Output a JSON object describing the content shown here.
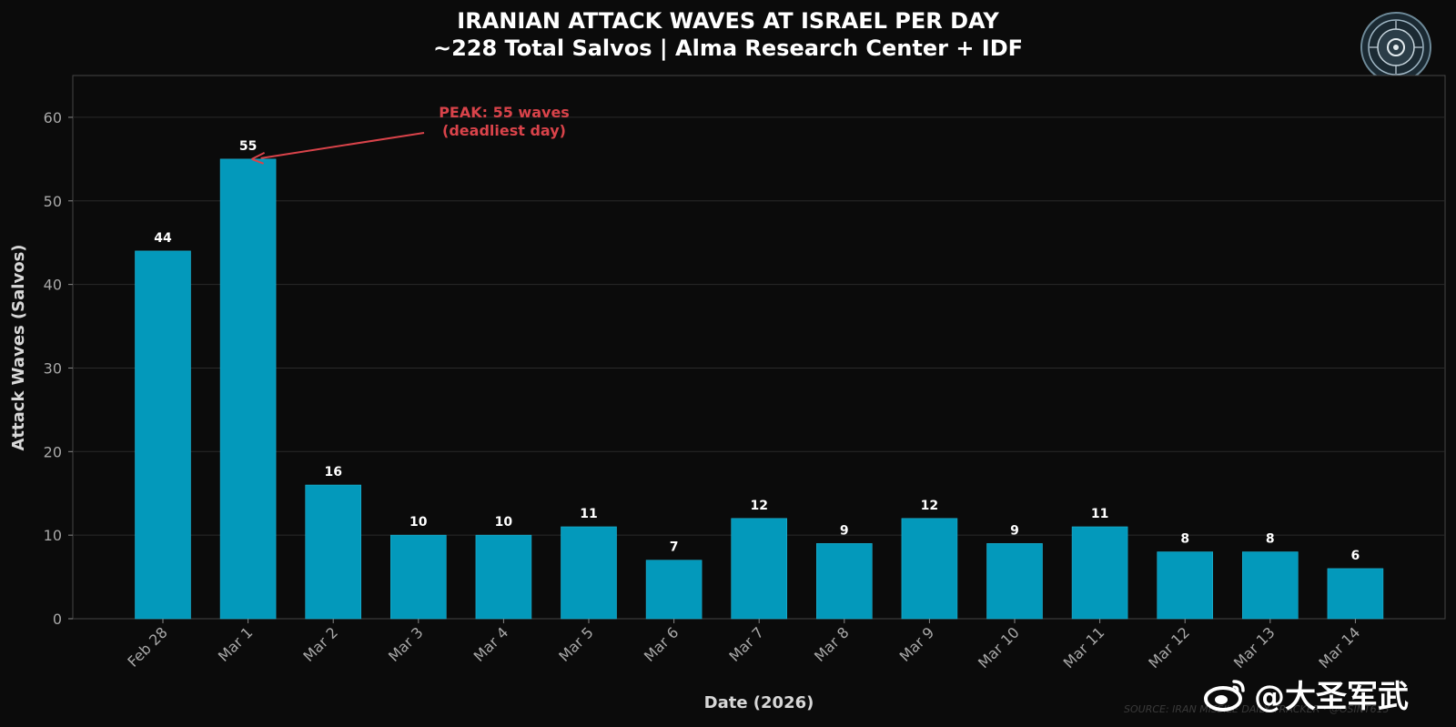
{
  "header": {
    "title_line1": "IRANIAN ATTACK WAVES AT ISRAEL PER DAY",
    "title_line2": "~228 Total Salvos | Alma Research Center + IDF"
  },
  "chart_data": {
    "type": "bar",
    "title": "IRANIAN ATTACK WAVES AT ISRAEL PER DAY",
    "subtitle": "~228 Total Salvos | Alma Research Center + IDF",
    "xlabel": "Date (2026)",
    "ylabel": "Attack Waves (Salvos)",
    "categories": [
      "Feb 28",
      "Mar 1",
      "Mar 2",
      "Mar 3",
      "Mar 4",
      "Mar 5",
      "Mar 6",
      "Mar 7",
      "Mar 8",
      "Mar 9",
      "Mar 10",
      "Mar 11",
      "Mar 12",
      "Mar 13",
      "Mar 14"
    ],
    "values": [
      44,
      55,
      16,
      10,
      10,
      11,
      7,
      12,
      9,
      12,
      9,
      11,
      8,
      8,
      6
    ],
    "ylim": [
      0,
      65
    ],
    "yticks": [
      0,
      10,
      20,
      30,
      40,
      50,
      60
    ],
    "grid": true,
    "bar_color": "#0399bb",
    "annotation": {
      "line1": "PEAK: 55 waves",
      "line2": "(deadliest day)",
      "target_category": "Mar 1",
      "target_value": 55,
      "color": "#d9434a"
    }
  },
  "footer": {
    "source": "SOURCE: IRAN MISSILE DAILY TRACKER · @OSINT613",
    "watermark": "@大圣军武"
  }
}
